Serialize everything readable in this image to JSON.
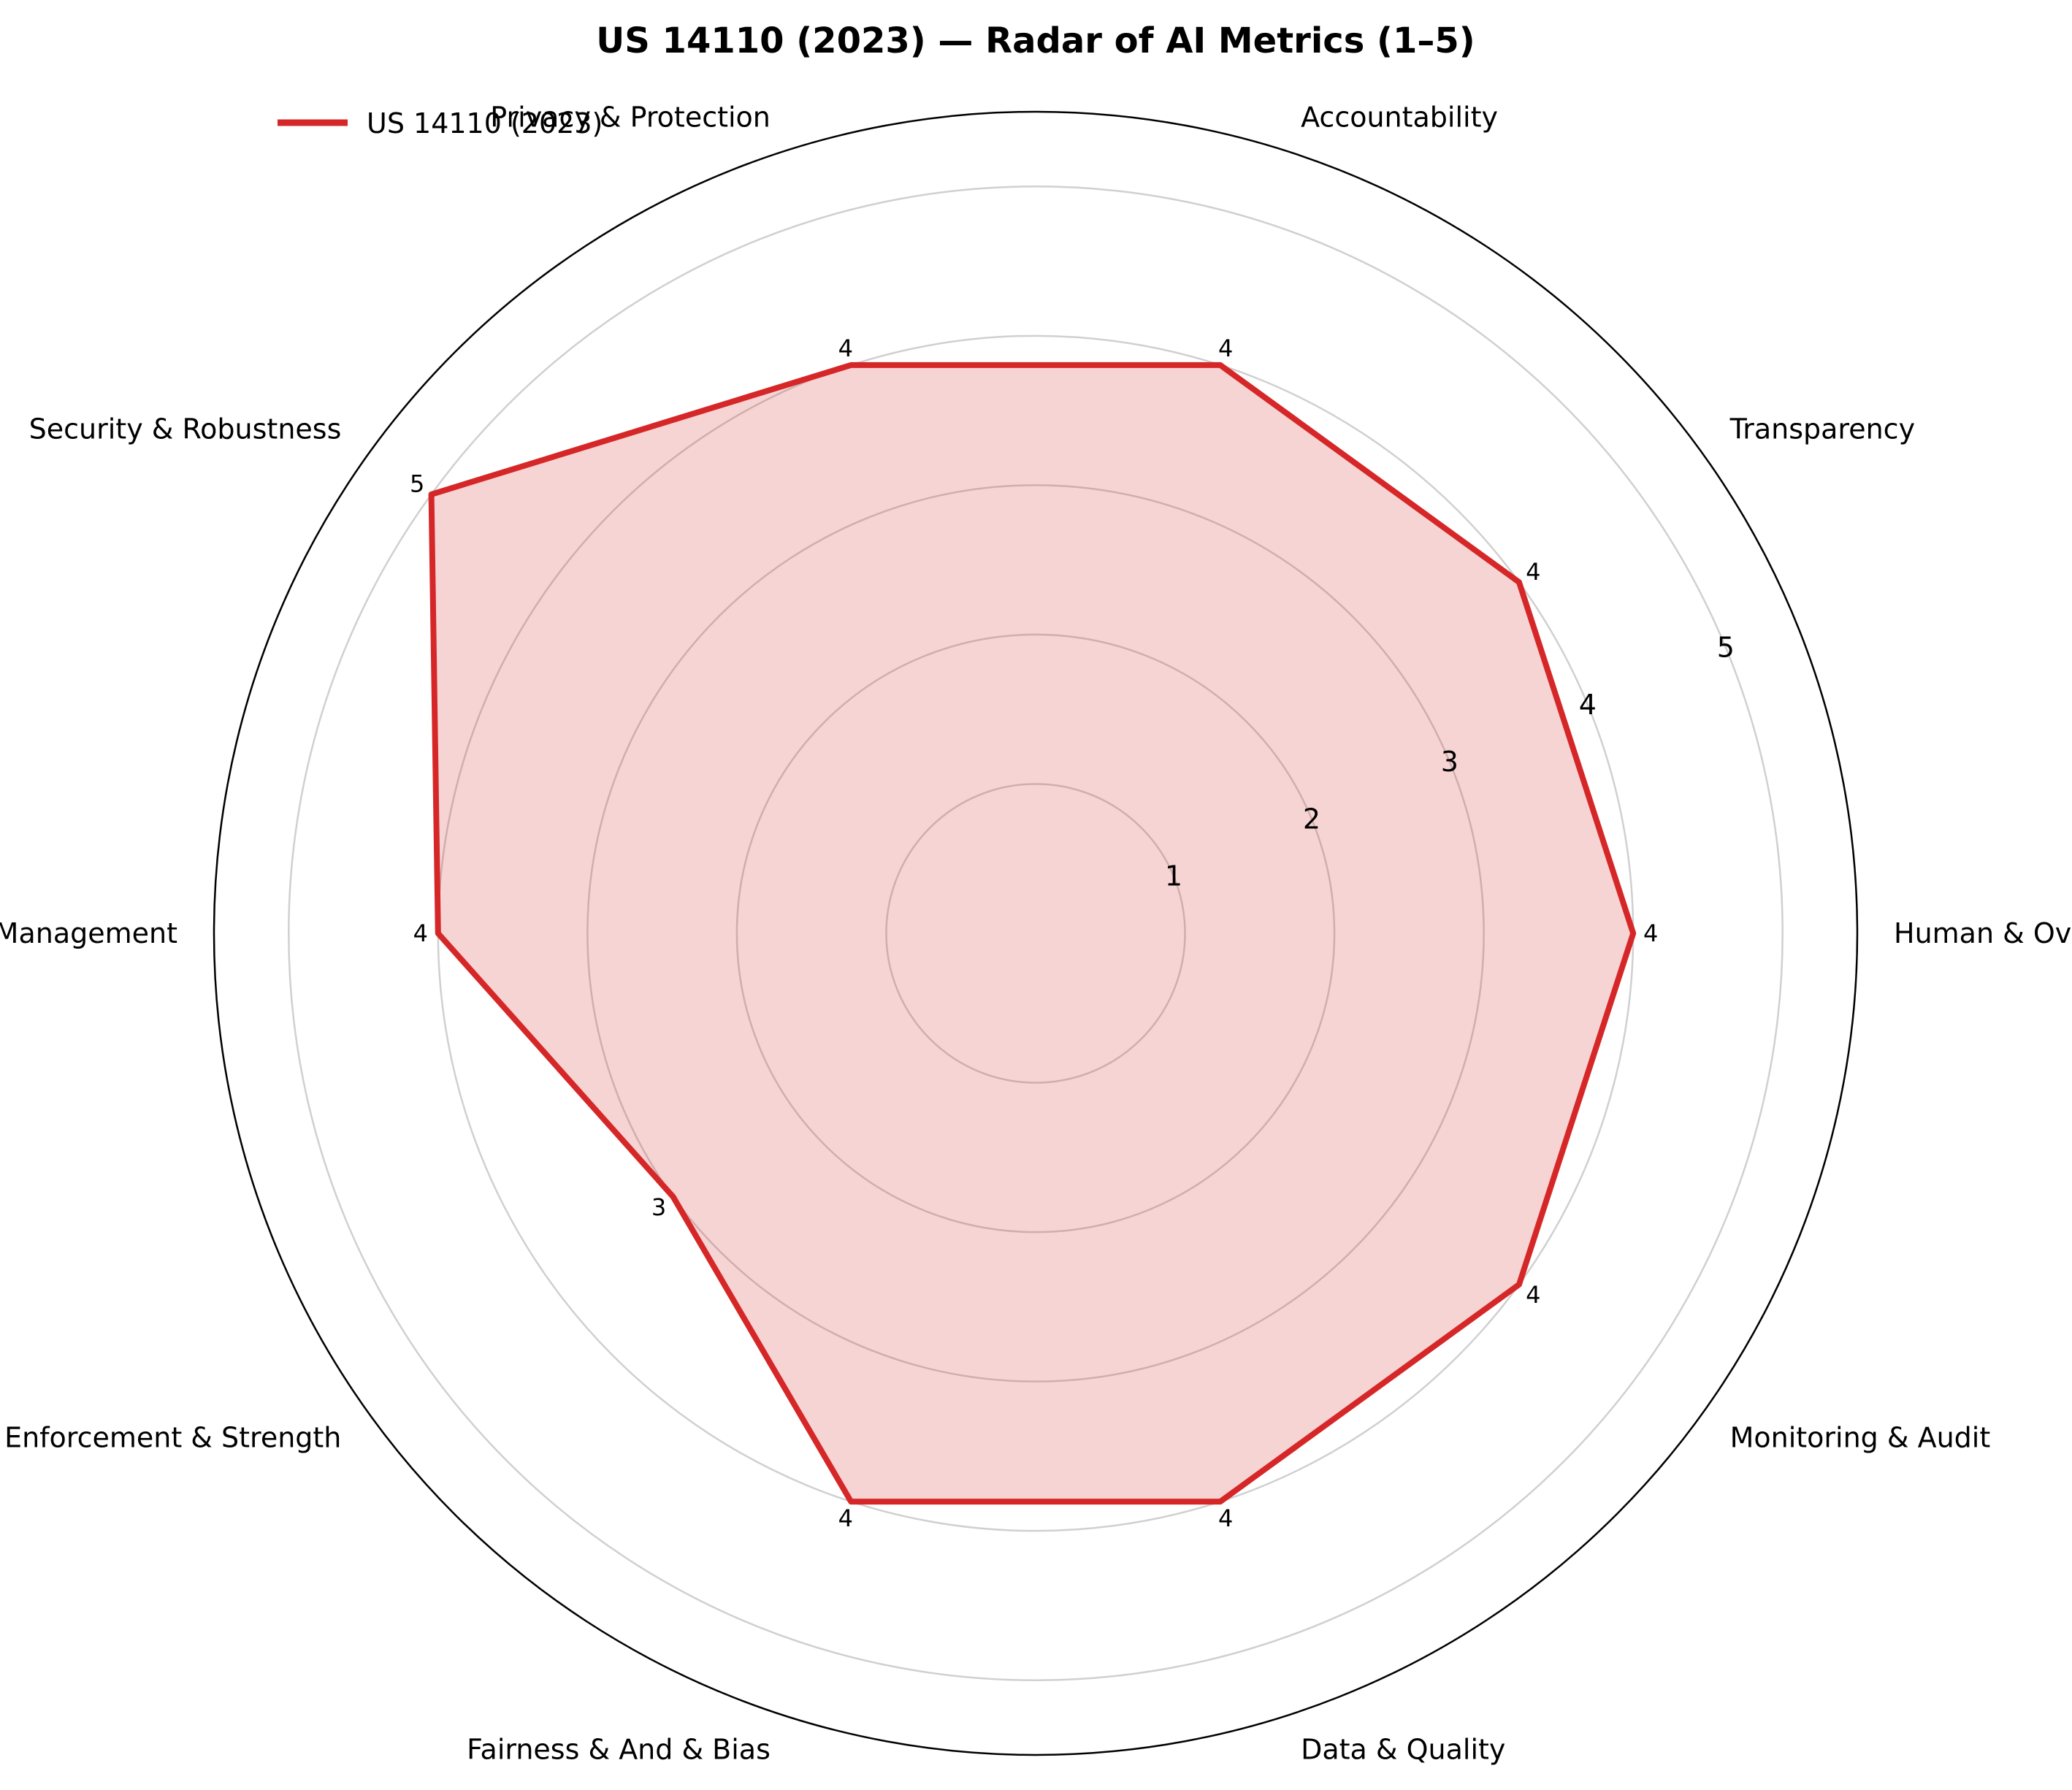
{
  "chart_data": {
    "type": "radar",
    "title": "US 14110 (2023) — Radar of AI Metrics (1–5)",
    "categories": [
      "Human & Oversight",
      "Transparency",
      "Accountability",
      "Privacy & Protection",
      "Security & Robustness",
      "Risk & Management",
      "Enforcement & Strength",
      "Fairness & And & Bias",
      "Data & Quality",
      "Monitoring & Audit"
    ],
    "series": [
      {
        "name": "US 14110 (2023)",
        "values": [
          4,
          4,
          4,
          4,
          5,
          4,
          3,
          4,
          4,
          4
        ],
        "color": "#d62728"
      }
    ],
    "rticks": [
      1,
      2,
      3,
      4,
      5
    ],
    "rticks_text": [
      "1",
      "2",
      "3",
      "4",
      "5"
    ],
    "rlim": [
      0,
      5.5
    ],
    "grid": true,
    "legend": "upper-left"
  }
}
